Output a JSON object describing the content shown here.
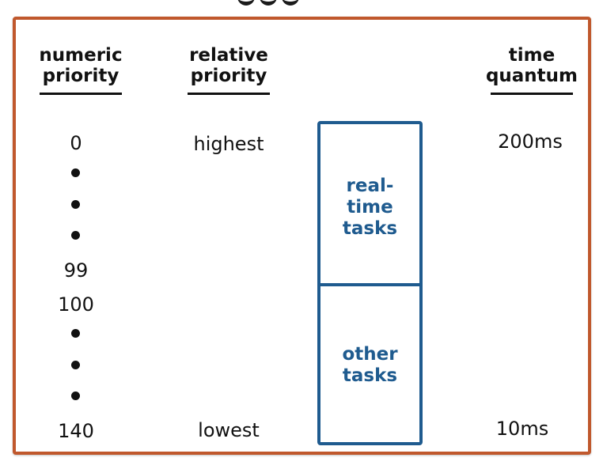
{
  "headers": {
    "numeric_priority": [
      "numeric",
      "priority"
    ],
    "relative_priority": [
      "relative",
      "priority"
    ],
    "time_quantum": [
      "time",
      "quantum"
    ]
  },
  "numeric_priorities": {
    "top": "0",
    "realtime_end": "99",
    "other_start": "100",
    "bottom": "140"
  },
  "relative_priorities": {
    "top": "highest",
    "bottom": "lowest"
  },
  "task_classes": {
    "realtime": [
      "real-",
      "time",
      "tasks"
    ],
    "other": [
      "other",
      "tasks"
    ]
  },
  "time_quanta": {
    "top": "200ms",
    "bottom": "10ms"
  },
  "colors": {
    "frame_border": "#c0582d",
    "task_blue": "#1f5b8f",
    "text": "#111111"
  }
}
